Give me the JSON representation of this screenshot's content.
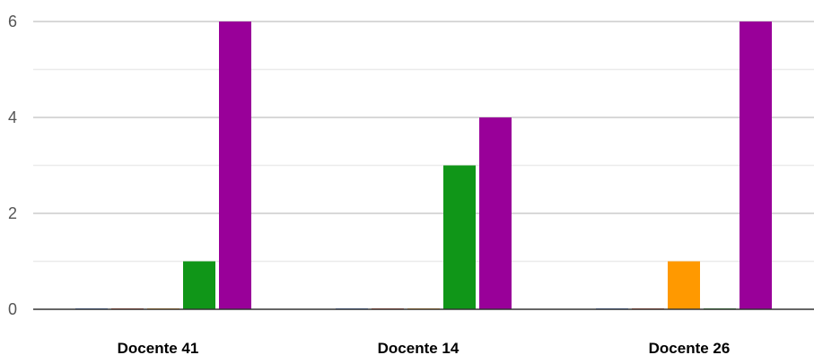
{
  "chart_data": {
    "type": "bar",
    "categories": [
      "Docente 41",
      "Docente 14",
      "Docente 26"
    ],
    "series": [
      {
        "values": [
          0,
          0,
          0
        ],
        "color": "#3366cc"
      },
      {
        "values": [
          0,
          0,
          0
        ],
        "color": "#dc3912"
      },
      {
        "values": [
          0,
          0,
          1
        ],
        "color": "#ff9900"
      },
      {
        "values": [
          1,
          3,
          0
        ],
        "color": "#109618"
      },
      {
        "values": [
          6,
          4,
          6
        ],
        "color": "#990099"
      }
    ],
    "yticks": [
      0,
      2,
      4,
      6
    ],
    "ylim": [
      0,
      6
    ],
    "grid": true,
    "title": "",
    "xlabel": "",
    "ylabel": ""
  }
}
